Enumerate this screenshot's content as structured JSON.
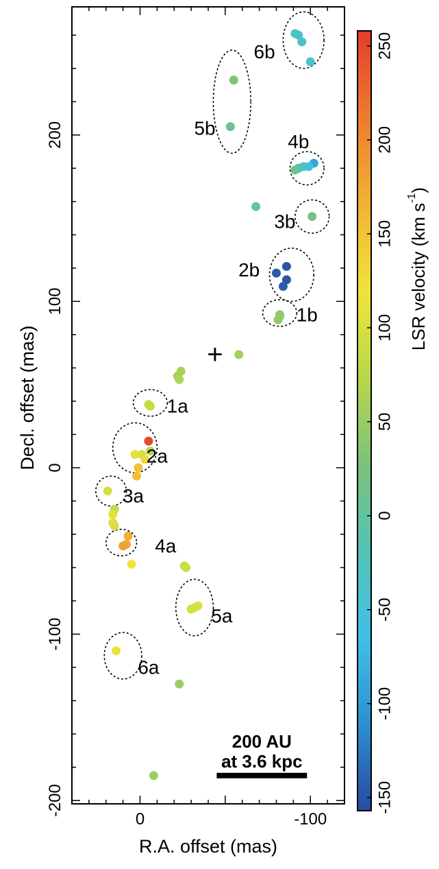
{
  "chart_data": {
    "type": "scatter",
    "title": "",
    "xlabel": "R.A. offset (mas)",
    "ylabel": "Decl. offset (mas)",
    "x_ticks": [
      "0",
      "-100"
    ],
    "y_ticks": [
      "-200",
      "-100",
      "0",
      "100",
      "200"
    ],
    "xlim": [
      40,
      -120
    ],
    "ylim": [
      -202,
      277
    ],
    "x_reversed": true,
    "grid": false,
    "colorbar": {
      "label_main": "LSR velocity (km s",
      "label_sup": "-1",
      "label_close": ")",
      "ticks": [
        "250",
        "200",
        "150",
        "100",
        "50",
        "0",
        "-50",
        "-100",
        "-150"
      ],
      "range": [
        -157,
        258
      ],
      "colormap": [
        "#2a4aa0",
        "#2c8fd0",
        "#41c0e6",
        "#52c2b4",
        "#7cc27a",
        "#b8d84c",
        "#f0e43a",
        "#f2b236",
        "#ee7b2e",
        "#e43d2c"
      ]
    },
    "center_marker": {
      "symbol": "+",
      "x": -44,
      "y": 68
    },
    "scale_bar": {
      "line1": "200 AU",
      "line2": "at 3.6 kpc",
      "x_start": -45,
      "x_end": -98,
      "y": -185
    },
    "groups": [
      {
        "label": "6b",
        "ellipse": {
          "cx": -96,
          "cy": 257,
          "rx": 12,
          "ry": 17
        },
        "label_pos": {
          "x": -73,
          "y": 250
        }
      },
      {
        "label": "5b",
        "ellipse": {
          "cx": -54,
          "cy": 220,
          "rx": 11,
          "ry": 31
        },
        "label_pos": {
          "x": -38,
          "y": 204
        }
      },
      {
        "label": "4b",
        "ellipse": {
          "cx": -98,
          "cy": 180,
          "rx": 10,
          "ry": 10
        },
        "label_pos": {
          "x": -93,
          "y": 196
        }
      },
      {
        "label": "3b",
        "ellipse": {
          "cx": -101,
          "cy": 151,
          "rx": 10,
          "ry": 10
        },
        "label_pos": {
          "x": -85,
          "y": 148
        }
      },
      {
        "label": "2b",
        "ellipse": {
          "cx": -89,
          "cy": 116,
          "rx": 13,
          "ry": 16
        },
        "label_pos": {
          "x": -64,
          "y": 119
        }
      },
      {
        "label": "1b",
        "ellipse": {
          "cx": -82,
          "cy": 93,
          "rx": 10,
          "ry": 8
        },
        "label_pos": {
          "x": -98,
          "y": 92
        }
      },
      {
        "label": "1a",
        "ellipse": {
          "cx": -6,
          "cy": 39,
          "rx": 10,
          "ry": 8
        },
        "label_pos": {
          "x": -22,
          "y": 37
        }
      },
      {
        "label": "2a",
        "ellipse": {
          "cx": 3,
          "cy": 12,
          "rx": 13,
          "ry": 15
        },
        "label_pos": {
          "x": -10,
          "y": 7
        }
      },
      {
        "label": "3a",
        "ellipse": {
          "cx": 17,
          "cy": -14,
          "rx": 9,
          "ry": 9
        },
        "label_pos": {
          "x": 4,
          "y": -17
        }
      },
      {
        "label": "4a",
        "ellipse": {
          "cx": 11,
          "cy": -45,
          "rx": 9,
          "ry": 8
        },
        "label_pos": {
          "x": -15,
          "y": -47
        }
      },
      {
        "label": "5a",
        "ellipse": {
          "cx": -32,
          "cy": -84,
          "rx": 11,
          "ry": 17
        },
        "label_pos": {
          "x": -48,
          "y": -89
        }
      },
      {
        "label": "6a",
        "ellipse": {
          "cx": 10,
          "cy": -113,
          "rx": 11,
          "ry": 14
        },
        "label_pos": {
          "x": -5,
          "y": -120
        }
      }
    ],
    "points": [
      {
        "x": -91,
        "y": 261,
        "v": -30
      },
      {
        "x": -93,
        "y": 260,
        "v": -35
      },
      {
        "x": -95,
        "y": 256,
        "v": -40
      },
      {
        "x": -100,
        "y": 244,
        "v": -45
      },
      {
        "x": -55,
        "y": 233,
        "v": 30
      },
      {
        "x": -53,
        "y": 205,
        "v": 10
      },
      {
        "x": -102,
        "y": 183,
        "v": -90
      },
      {
        "x": -99,
        "y": 181,
        "v": -60
      },
      {
        "x": -96,
        "y": 181,
        "v": -40
      },
      {
        "x": -93,
        "y": 180,
        "v": -20
      },
      {
        "x": -91,
        "y": 179,
        "v": 10
      },
      {
        "x": -68,
        "y": 157,
        "v": 5
      },
      {
        "x": -101,
        "y": 151,
        "v": 20
      },
      {
        "x": -86,
        "y": 121,
        "v": -150
      },
      {
        "x": -80,
        "y": 117,
        "v": -145
      },
      {
        "x": -86,
        "y": 113,
        "v": -150
      },
      {
        "x": -84,
        "y": 109,
        "v": -145
      },
      {
        "x": -82,
        "y": 92,
        "v": 40
      },
      {
        "x": -82,
        "y": 91,
        "v": 45
      },
      {
        "x": -81,
        "y": 89,
        "v": 45
      },
      {
        "x": -58,
        "y": 68,
        "v": 55
      },
      {
        "x": -24,
        "y": 58,
        "v": 60
      },
      {
        "x": -22,
        "y": 55,
        "v": 60
      },
      {
        "x": -23,
        "y": 53,
        "v": 65
      },
      {
        "x": -5,
        "y": 38,
        "v": 90
      },
      {
        "x": -6,
        "y": 37,
        "v": 85
      },
      {
        "x": -5,
        "y": 16,
        "v": 250
      },
      {
        "x": -6,
        "y": 10,
        "v": 70
      },
      {
        "x": 3,
        "y": 8,
        "v": 110
      },
      {
        "x": -1,
        "y": 8,
        "v": 100
      },
      {
        "x": -3,
        "y": 5,
        "v": 130
      },
      {
        "x": 1,
        "y": 0,
        "v": 150
      },
      {
        "x": 2,
        "y": -5,
        "v": 155
      },
      {
        "x": 19,
        "y": -14,
        "v": 95
      },
      {
        "x": 15,
        "y": -25,
        "v": 80
      },
      {
        "x": 16,
        "y": -28,
        "v": 110
      },
      {
        "x": 16,
        "y": -33,
        "v": 110
      },
      {
        "x": 15,
        "y": -35,
        "v": 100
      },
      {
        "x": 7,
        "y": -41,
        "v": 170
      },
      {
        "x": 8,
        "y": -46,
        "v": 175
      },
      {
        "x": 10,
        "y": -47,
        "v": 180
      },
      {
        "x": 5,
        "y": -58,
        "v": 120
      },
      {
        "x": -26,
        "y": -59,
        "v": 85
      },
      {
        "x": -27,
        "y": -60,
        "v": 90
      },
      {
        "x": -30,
        "y": -85,
        "v": 95
      },
      {
        "x": -32,
        "y": -84,
        "v": 100
      },
      {
        "x": -34,
        "y": -83,
        "v": 100
      },
      {
        "x": 14,
        "y": -110,
        "v": 115
      },
      {
        "x": -23,
        "y": -130,
        "v": 50
      },
      {
        "x": -8,
        "y": -185,
        "v": 50
      }
    ]
  }
}
